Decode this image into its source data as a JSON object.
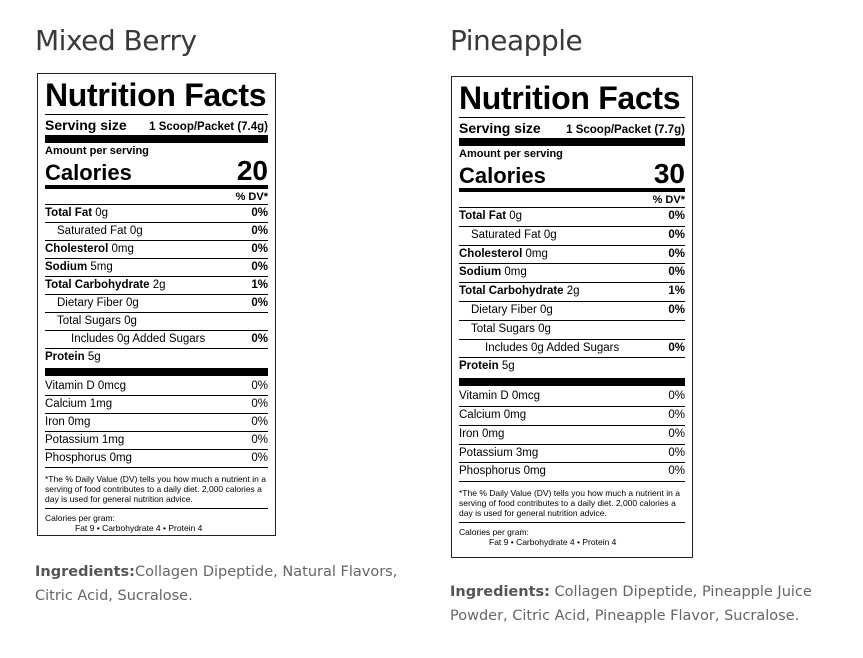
{
  "products": [
    {
      "name": "Mixed Berry",
      "label": {
        "title": "Nutrition Facts",
        "serving_label": "Serving size",
        "serving_value": "1 Scoop/Packet (7.4g)",
        "amount_per_serving": "Amount per serving",
        "calories_label": "Calories",
        "calories_value": "20",
        "dv_header": "% DV*",
        "total_fat": "Total Fat",
        "total_fat_amt": "0g",
        "total_fat_dv": "0%",
        "sat_fat": "Saturated Fat",
        "sat_fat_amt": "0g",
        "sat_fat_dv": "0%",
        "cholesterol": "Cholesterol",
        "cholesterol_amt": "0mg",
        "cholesterol_dv": "0%",
        "sodium": "Sodium",
        "sodium_amt": "5mg",
        "sodium_dv": "0%",
        "total_carb": "Total Carbohydrate",
        "total_carb_amt": "2g",
        "total_carb_dv": "1%",
        "fiber": "Dietary Fiber",
        "fiber_amt": "0g",
        "fiber_dv": "0%",
        "total_sugars": "Total Sugars",
        "total_sugars_amt": "0g",
        "added_sugars": "Includes 0g Added Sugars",
        "added_sugars_dv": "0%",
        "protein": "Protein",
        "protein_amt": "5g",
        "vitamin_d": "Vitamin D",
        "vitamin_d_amt": "0mcg",
        "vitamin_d_dv": "0%",
        "calcium": "Calcium",
        "calcium_amt": "1mg",
        "calcium_dv": "0%",
        "iron": "Iron",
        "iron_amt": "0mg",
        "iron_dv": "0%",
        "potassium": "Potassium",
        "potassium_amt": "1mg",
        "potassium_dv": "0%",
        "phosphorus": "Phosphorus",
        "phosphorus_amt": "0mg",
        "phosphorus_dv": "0%",
        "footnote": "*The % Daily Value (DV) tells you how much a nutrient in a serving of food contributes to a daily diet. 2,000 calories a day is used for general nutrition advice.",
        "cal_per_gram": "Calories per gram:",
        "cal_per_gram_values": "Fat 9  •  Carbohydrate 4  •  Protein 4"
      },
      "ingredients_label": "Ingredients:",
      "ingredients": "Collagen Dipeptide, Natural Flavors, Citric Acid, Sucralose."
    },
    {
      "name": "Pineapple",
      "label": {
        "title": "Nutrition Facts",
        "serving_label": "Serving size",
        "serving_value": "1 Scoop/Packet (7.7g)",
        "amount_per_serving": "Amount per serving",
        "calories_label": "Calories",
        "calories_value": "30",
        "dv_header": "% DV*",
        "total_fat": "Total Fat",
        "total_fat_amt": "0g",
        "total_fat_dv": "0%",
        "sat_fat": "Saturated Fat",
        "sat_fat_amt": "0g",
        "sat_fat_dv": "0%",
        "cholesterol": "Cholesterol",
        "cholesterol_amt": "0mg",
        "cholesterol_dv": "0%",
        "sodium": "Sodium",
        "sodium_amt": "0mg",
        "sodium_dv": "0%",
        "total_carb": "Total Carbohydrate",
        "total_carb_amt": "2g",
        "total_carb_dv": "1%",
        "fiber": "Dietary Fiber",
        "fiber_amt": "0g",
        "fiber_dv": "0%",
        "total_sugars": "Total Sugars",
        "total_sugars_amt": "0g",
        "added_sugars": "Includes 0g Added Sugars",
        "added_sugars_dv": "0%",
        "protein": "Protein",
        "protein_amt": "5g",
        "vitamin_d": "Vitamin D",
        "vitamin_d_amt": "0mcg",
        "vitamin_d_dv": "0%",
        "calcium": "Calcium",
        "calcium_amt": "0mg",
        "calcium_dv": "0%",
        "iron": "Iron",
        "iron_amt": "0mg",
        "iron_dv": "0%",
        "potassium": "Potassium",
        "potassium_amt": "3mg",
        "potassium_dv": "0%",
        "phosphorus": "Phosphorus",
        "phosphorus_amt": "0mg",
        "phosphorus_dv": "0%",
        "footnote": "*The % Daily Value (DV) tells you how much a nutrient in a serving of food contributes to a daily diet. 2,000 calories a day is used for general nutrition advice.",
        "cal_per_gram": "Calories per gram:",
        "cal_per_gram_values": "Fat 9  •  Carbohydrate 4  •  Protein 4"
      },
      "ingredients_label": "Ingredients:",
      "ingredients": " Collagen Dipeptide, Pineapple Juice Powder, Citric Acid, Pineapple Flavor, Sucralose."
    }
  ]
}
